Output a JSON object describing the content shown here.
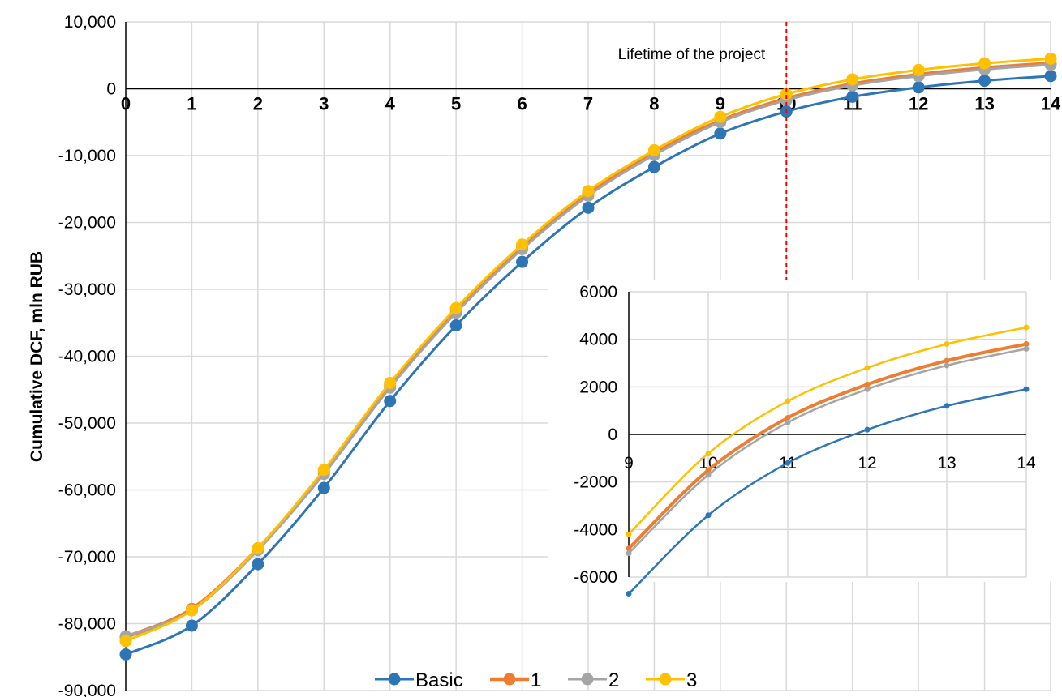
{
  "chart_data": [
    {
      "type": "line",
      "ylabel": "Cumulative DCF, mln RUB",
      "xlim": [
        0,
        14
      ],
      "ylim": [
        -90000,
        10000
      ],
      "x": [
        0,
        1,
        2,
        3,
        4,
        5,
        6,
        7,
        8,
        9,
        10,
        11,
        12,
        13,
        14
      ],
      "x_ticks": [
        "0",
        "1",
        "2",
        "3",
        "4",
        "5",
        "6",
        "7",
        "8",
        "9",
        "10",
        "11",
        "12",
        "13",
        "14"
      ],
      "y_ticks": [
        {
          "value": 10000,
          "label": "10,000"
        },
        {
          "value": 0,
          "label": "0"
        },
        {
          "value": -10000,
          "label": "-10,000"
        },
        {
          "value": -20000,
          "label": "-20,000"
        },
        {
          "value": -30000,
          "label": "-30,000"
        },
        {
          "value": -40000,
          "label": "-40,000"
        },
        {
          "value": -50000,
          "label": "-50,000"
        },
        {
          "value": -60000,
          "label": "-60,000"
        },
        {
          "value": -70000,
          "label": "-70,000"
        },
        {
          "value": -80000,
          "label": "-80,000"
        },
        {
          "value": -90000,
          "label": "-90,000"
        }
      ],
      "grid": true,
      "legend_position": "bottom",
      "annotation": {
        "text": "Lifetime of the project",
        "x": 10,
        "color": "#ff0000",
        "style": "dashed-vertical-line"
      },
      "series": [
        {
          "name": "Basic",
          "color": "#2e75b6",
          "values": [
            -84600,
            -80300,
            -71100,
            -59700,
            -46700,
            -35400,
            -25900,
            -17800,
            -11700,
            -6700,
            -3400,
            -1200,
            200,
            1200,
            1900
          ]
        },
        {
          "name": "1",
          "color": "#ed7d31",
          "values": [
            -82000,
            -77800,
            -68800,
            -57300,
            -44300,
            -33100,
            -23600,
            -15600,
            -9500,
            -4800,
            -1500,
            700,
            2100,
            3100,
            3800
          ]
        },
        {
          "name": "2",
          "color": "#a5a5a5",
          "values": [
            -81900,
            -78000,
            -69000,
            -57600,
            -44700,
            -33500,
            -24000,
            -16000,
            -9900,
            -5000,
            -1700,
            500,
            1900,
            2900,
            3600
          ]
        },
        {
          "name": "3",
          "color": "#ffc000",
          "values": [
            -82600,
            -78000,
            -68700,
            -57000,
            -44000,
            -32800,
            -23300,
            -15300,
            -9200,
            -4200,
            -800,
            1400,
            2800,
            3800,
            4500
          ]
        }
      ]
    },
    {
      "type": "line",
      "inset": true,
      "xlim": [
        9,
        14
      ],
      "ylim": [
        -6000,
        6000
      ],
      "x": [
        9,
        10,
        11,
        12,
        13,
        14
      ],
      "x_ticks": [
        "9",
        "10",
        "11",
        "12",
        "13",
        "14"
      ],
      "y_ticks": [
        {
          "value": 6000,
          "label": "6000"
        },
        {
          "value": 4000,
          "label": "4000"
        },
        {
          "value": 2000,
          "label": "2000"
        },
        {
          "value": 0,
          "label": "0"
        },
        {
          "value": -2000,
          "label": "-2000"
        },
        {
          "value": -4000,
          "label": "-4000"
        },
        {
          "value": -6000,
          "label": "-6000"
        }
      ],
      "grid": true,
      "series": [
        {
          "name": "Basic",
          "color": "#2e75b6",
          "values": [
            -6700,
            -3400,
            -1200,
            200,
            1200,
            1900
          ]
        },
        {
          "name": "1",
          "color": "#ed7d31",
          "values": [
            -4800,
            -1500,
            700,
            2100,
            3100,
            3800
          ]
        },
        {
          "name": "2",
          "color": "#a5a5a5",
          "values": [
            -5000,
            -1700,
            500,
            1900,
            2900,
            3600
          ]
        },
        {
          "name": "3",
          "color": "#ffc000",
          "values": [
            -4200,
            -800,
            1400,
            2800,
            3800,
            4500
          ]
        }
      ]
    }
  ]
}
